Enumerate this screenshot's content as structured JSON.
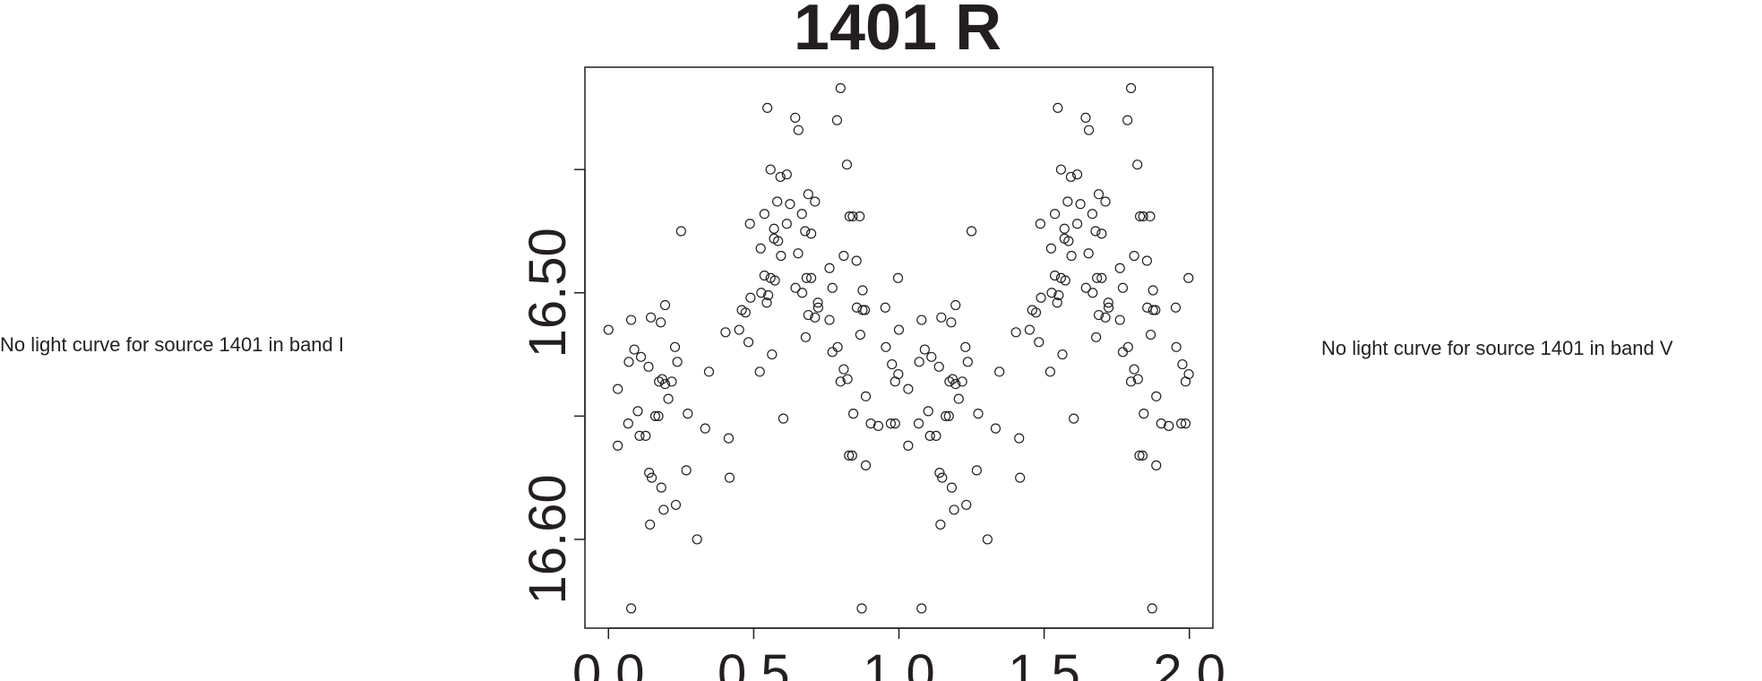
{
  "left_panel": {
    "message": "No light curve for source 1401 in band I"
  },
  "right_panel": {
    "message": "No light curve for source 1401 in band V"
  },
  "chart_data": {
    "type": "scatter",
    "title": "1401 R",
    "xlabel": "",
    "ylabel": "",
    "xlim": [
      -0.081,
      2.081
    ],
    "ylim": [
      16.636,
      16.4085
    ],
    "y_inverted": true,
    "grid": false,
    "marker": "open-circle",
    "color": "#231f20",
    "x_ticks": [
      0.0,
      0.5,
      1.0,
      1.5,
      2.0
    ],
    "x_tick_labels": [
      "0.0",
      "0.5",
      "1.0",
      "1.5",
      "2.0"
    ],
    "y_ticks": [
      16.45,
      16.5,
      16.55,
      16.6
    ],
    "y_tick_labels": [
      "",
      "16.50",
      "",
      "16.60"
    ],
    "phase_repeat": "points plotted at phase and phase + 1",
    "phase": [
      0.0,
      0.032,
      0.032,
      0.068,
      0.07,
      0.078,
      0.078,
      0.089,
      0.101,
      0.107,
      0.112,
      0.128,
      0.138,
      0.14,
      0.143,
      0.146,
      0.149,
      0.161,
      0.172,
      0.174,
      0.18,
      0.182,
      0.185,
      0.19,
      0.195,
      0.195,
      0.206,
      0.218,
      0.229,
      0.232,
      0.237,
      0.25,
      0.268,
      0.273,
      0.305,
      0.333,
      0.346,
      0.403,
      0.414,
      0.417,
      0.45,
      0.459,
      0.472,
      0.482,
      0.487,
      0.489,
      0.521,
      0.524,
      0.526,
      0.537,
      0.537,
      0.545,
      0.547,
      0.55,
      0.558,
      0.558,
      0.563,
      0.57,
      0.57,
      0.573,
      0.581,
      0.584,
      0.592,
      0.594,
      0.602,
      0.614,
      0.614,
      0.625,
      0.643,
      0.644,
      0.653,
      0.654,
      0.666,
      0.667,
      0.677,
      0.679,
      0.682,
      0.688,
      0.688,
      0.698,
      0.698,
      0.711,
      0.711,
      0.721,
      0.722,
      0.761,
      0.761,
      0.771,
      0.771,
      0.787,
      0.789,
      0.799,
      0.799,
      0.81,
      0.81,
      0.821,
      0.823,
      0.828,
      0.83,
      0.839,
      0.841,
      0.843,
      0.854,
      0.855,
      0.865,
      0.867,
      0.872,
      0.875,
      0.875,
      0.883,
      0.886,
      0.886,
      0.903,
      0.929,
      0.953,
      0.955,
      0.972,
      0.976,
      0.987,
      0.987,
      0.997,
      0.998
    ],
    "mag": [
      16.515,
      16.539,
      16.562,
      16.553,
      16.528,
      16.511,
      16.628,
      16.523,
      16.548,
      16.558,
      16.526,
      16.558,
      16.53,
      16.573,
      16.594,
      16.51,
      16.575,
      16.55,
      16.55,
      16.536,
      16.512,
      16.579,
      16.535,
      16.588,
      16.505,
      16.537,
      16.543,
      16.536,
      16.522,
      16.586,
      16.528,
      16.475,
      16.572,
      16.549,
      16.6,
      16.555,
      16.532,
      16.516,
      16.559,
      16.575,
      16.515,
      16.507,
      16.508,
      16.52,
      16.472,
      16.502,
      16.532,
      16.482,
      16.5,
      16.468,
      16.493,
      16.504,
      16.425,
      16.501,
      16.45,
      16.494,
      16.525,
      16.474,
      16.478,
      16.495,
      16.463,
      16.479,
      16.453,
      16.485,
      16.551,
      16.452,
      16.472,
      16.464,
      16.429,
      16.498,
      16.484,
      16.434,
      16.468,
      16.5,
      16.475,
      16.518,
      16.494,
      16.46,
      16.509,
      16.476,
      16.494,
      16.463,
      16.51,
      16.504,
      16.506,
      16.49,
      16.511,
      16.498,
      16.524,
      16.43,
      16.522,
      16.417,
      16.536,
      16.531,
      16.485,
      16.448,
      16.535,
      16.566,
      16.469,
      16.566,
      16.469,
      16.549,
      16.487,
      16.506,
      16.469,
      16.517,
      16.628,
      16.499,
      16.507,
      16.507,
      16.542,
      16.57,
      16.553,
      16.554,
      16.506,
      16.522,
      16.553,
      16.529,
      16.553,
      16.536,
      16.494,
      16.533
    ]
  }
}
